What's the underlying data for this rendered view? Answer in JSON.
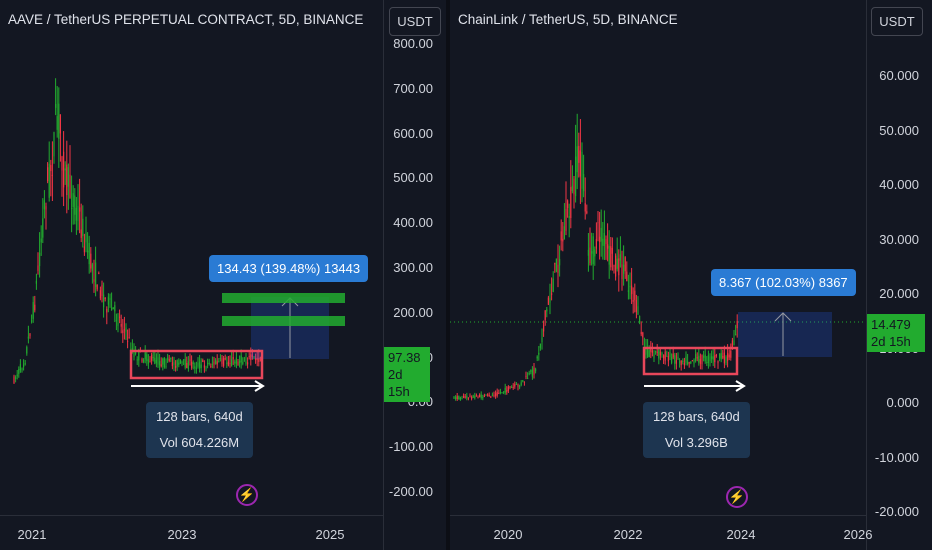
{
  "left_chart": {
    "title": "AAVE / TetherUS PERPETUAL CONTRACT, 5D, BINANCE",
    "currency_button": "USDT",
    "y_ticks": [
      "800.00",
      "700.00",
      "600.00",
      "500.00",
      "400.00",
      "300.00",
      "200.00",
      "100.00",
      "0.00",
      "-100.00",
      "-200.00"
    ],
    "x_ticks": [
      "2021",
      "2023",
      "2025"
    ],
    "price_label": {
      "price": "97.38",
      "countdown": "2d 15h"
    },
    "measure_tooltip": "134.43 (139.48%) 13443",
    "range_tooltip": {
      "bars": "128 bars, 640d",
      "volume": "Vol 604.226M"
    },
    "icon": "lightning-icon"
  },
  "right_chart": {
    "title": "ChainLink / TetherUS, 5D, BINANCE",
    "currency_button": "USDT",
    "y_ticks": [
      "60.000",
      "50.000",
      "40.000",
      "30.000",
      "20.000",
      "10.000",
      "0.000",
      "-10.000",
      "-20.000"
    ],
    "x_ticks": [
      "2020",
      "2022",
      "2024",
      "2026"
    ],
    "price_label": {
      "price": "14.479",
      "countdown": "2d 15h"
    },
    "measure_tooltip": "8.367 (102.03%) 8367",
    "range_tooltip": {
      "bars": "128 bars, 640d",
      "volume": "Vol 3.296B"
    },
    "icon": "lightning-icon"
  },
  "colors": {
    "background": "#131722",
    "up": "#22ab2f",
    "down": "#f23645",
    "accent": "#2a7bd4",
    "box_border": "#e8475b"
  }
}
